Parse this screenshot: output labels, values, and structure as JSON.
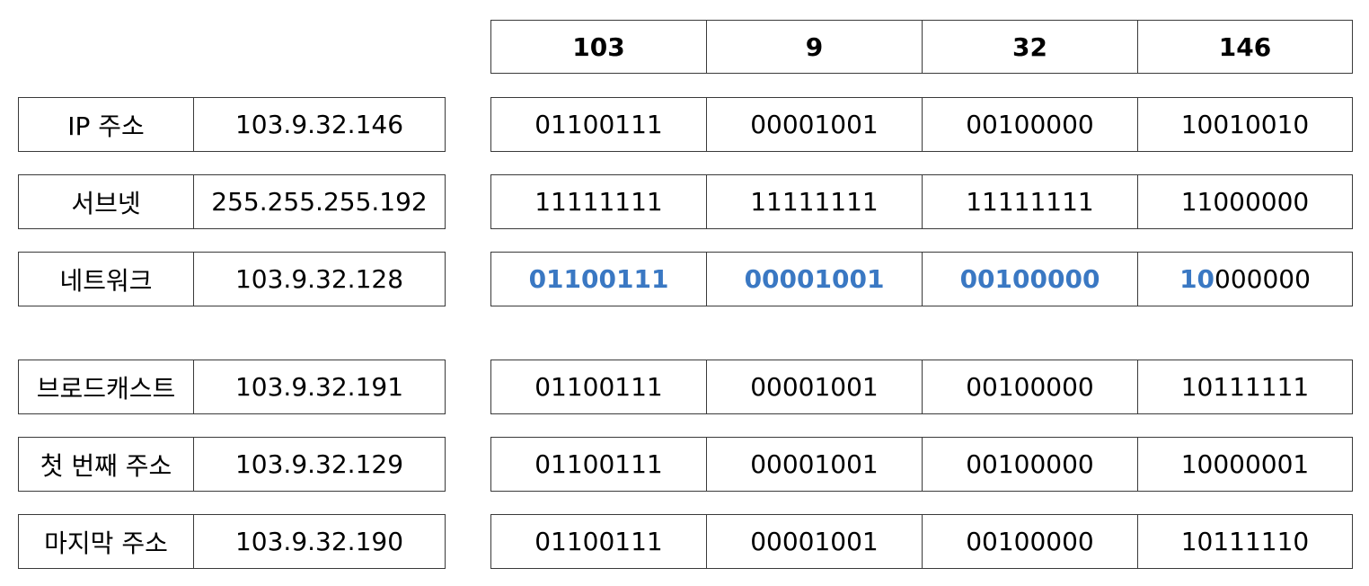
{
  "header": {
    "octets": [
      "103",
      "9",
      "32",
      "146"
    ]
  },
  "rows": [
    {
      "label": "IP 주소",
      "value": "103.9.32.146",
      "bits": [
        {
          "hi": "",
          "rest": "01100111"
        },
        {
          "hi": "",
          "rest": "00001001"
        },
        {
          "hi": "",
          "rest": "00100000"
        },
        {
          "hi": "",
          "rest": "10010010"
        }
      ]
    },
    {
      "label": "서브넷",
      "value": "255.255.255.192",
      "bits": [
        {
          "hi": "",
          "rest": "11111111"
        },
        {
          "hi": "",
          "rest": "11111111"
        },
        {
          "hi": "",
          "rest": "11111111"
        },
        {
          "hi": "",
          "rest": "11000000"
        }
      ]
    },
    {
      "label": "네트워크",
      "value": "103.9.32.128",
      "bits": [
        {
          "hi": "01100111",
          "rest": ""
        },
        {
          "hi": "00001001",
          "rest": ""
        },
        {
          "hi": "00100000",
          "rest": ""
        },
        {
          "hi": "10",
          "rest": "000000"
        }
      ]
    },
    {
      "label": "브로드캐스트",
      "value": "103.9.32.191",
      "bits": [
        {
          "hi": "",
          "rest": "01100111"
        },
        {
          "hi": "",
          "rest": "00001001"
        },
        {
          "hi": "",
          "rest": "00100000"
        },
        {
          "hi": "",
          "rest": "10111111"
        }
      ]
    },
    {
      "label": "첫 번째 주소",
      "value": "103.9.32.129",
      "bits": [
        {
          "hi": "",
          "rest": "01100111"
        },
        {
          "hi": "",
          "rest": "00001001"
        },
        {
          "hi": "",
          "rest": "00100000"
        },
        {
          "hi": "",
          "rest": "10000001"
        }
      ]
    },
    {
      "label": "마지막 주소",
      "value": "103.9.32.190",
      "bits": [
        {
          "hi": "",
          "rest": "01100111"
        },
        {
          "hi": "",
          "rest": "00001001"
        },
        {
          "hi": "",
          "rest": "00100000"
        },
        {
          "hi": "",
          "rest": "10111110"
        }
      ]
    }
  ],
  "colors": {
    "highlight": "#3a78c3",
    "border": "#3a3a3a"
  }
}
